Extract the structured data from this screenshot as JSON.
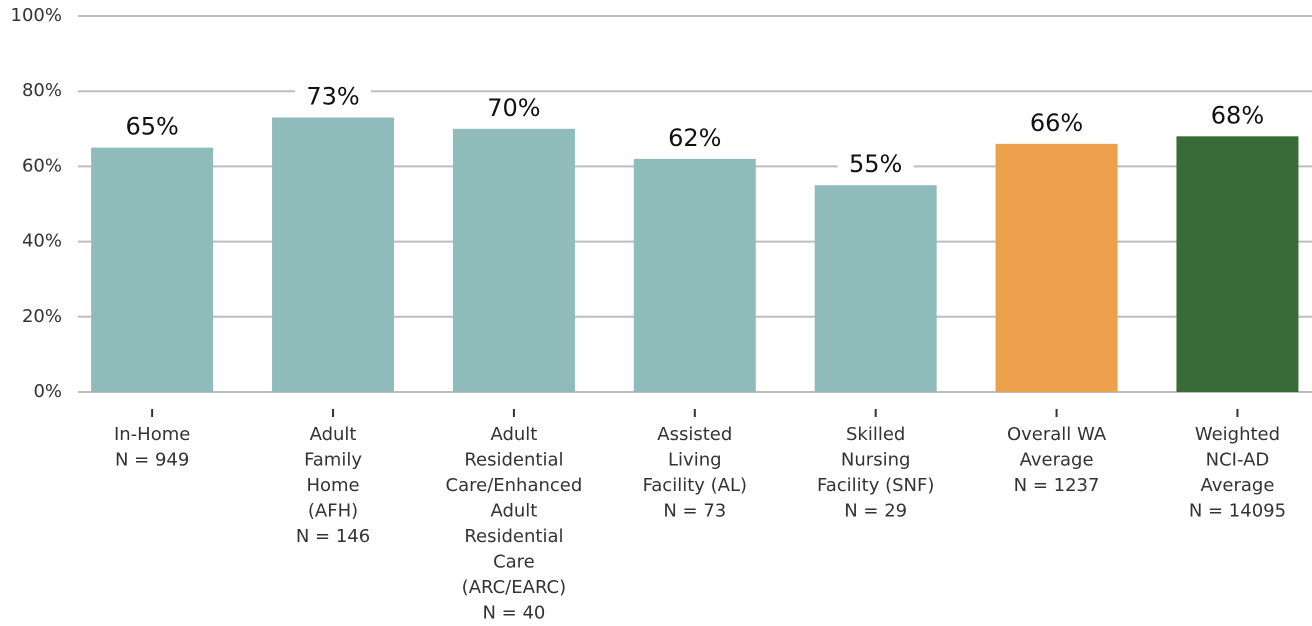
{
  "chart_data": {
    "type": "bar",
    "categories": [
      [
        "In-Home",
        "N = 949"
      ],
      [
        "Adult",
        "Family",
        "Home",
        "(AFH)",
        "N = 146"
      ],
      [
        "Adult",
        "Residential",
        "Care/Enhanced",
        "Adult",
        "Residential",
        "Care",
        "(ARC/EARC)",
        "N = 40"
      ],
      [
        "Assisted",
        "Living",
        "Facility (AL)",
        "N = 73"
      ],
      [
        "Skilled",
        "Nursing",
        "Facility (SNF)",
        "N = 29"
      ],
      [
        "Overall WA",
        "Average",
        "N = 1237"
      ],
      [
        "Weighted",
        "NCI-AD",
        "Average",
        "N = 14095"
      ]
    ],
    "values": [
      65,
      73,
      70,
      62,
      55,
      66,
      68
    ],
    "value_labels": [
      "65%",
      "73%",
      "70%",
      "62%",
      "55%",
      "66%",
      "68%"
    ],
    "colors": [
      "#8fbcbb",
      "#8fbcbb",
      "#8fbcbb",
      "#8fbcbb",
      "#8fbcbb",
      "#eda04b",
      "#386b38"
    ],
    "ylim": [
      0,
      100
    ],
    "yticks": [
      {
        "value": 0,
        "label": "0%"
      },
      {
        "value": 20,
        "label": "20%"
      },
      {
        "value": 40,
        "label": "40%"
      },
      {
        "value": 60,
        "label": "60%"
      },
      {
        "value": 80,
        "label": "80%"
      },
      {
        "value": 100,
        "label": "100%"
      }
    ],
    "grid": true
  }
}
